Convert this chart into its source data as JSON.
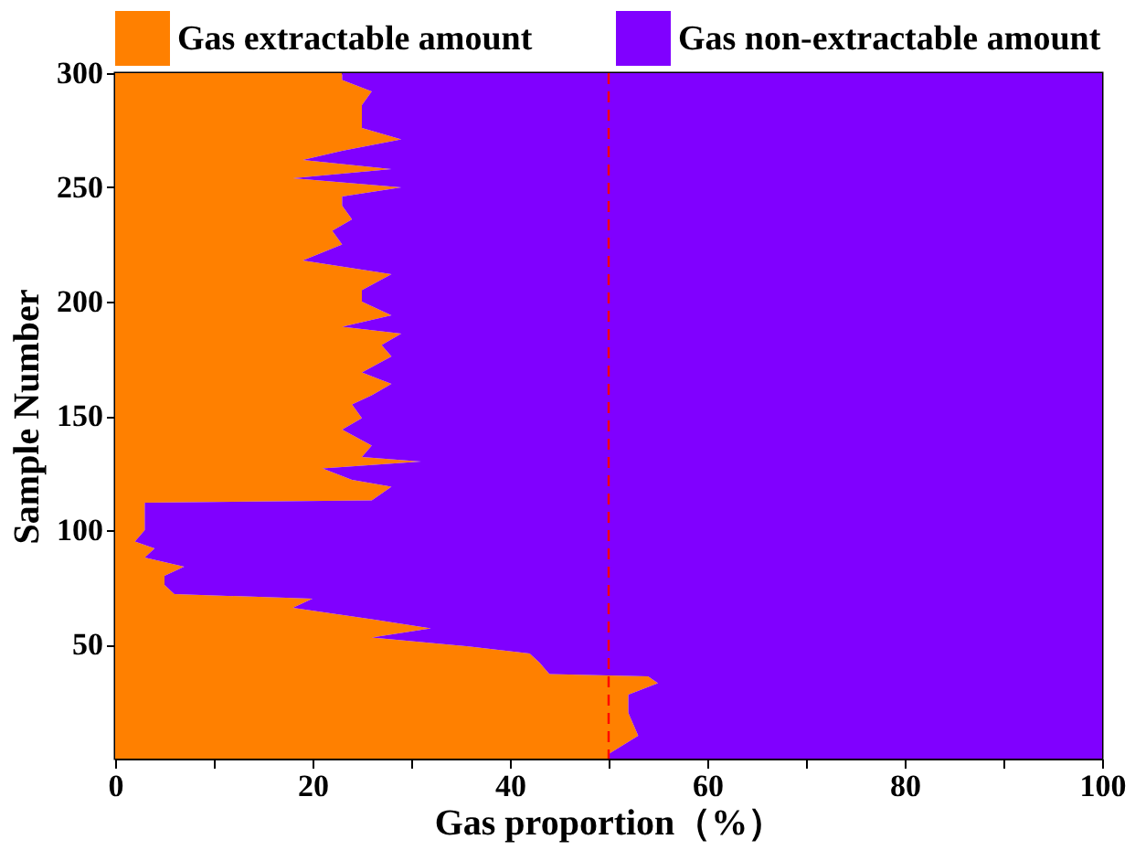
{
  "chart_data": {
    "type": "area",
    "orientation": "horizontal",
    "stacked": true,
    "xlabel": "Gas proportion（%）",
    "ylabel": "Sample Number",
    "x": [
      0,
      2,
      10,
      20,
      28,
      33,
      36,
      37,
      42,
      46,
      49,
      53,
      57,
      61,
      66,
      70,
      72,
      76,
      80,
      84,
      88,
      92,
      95,
      100,
      103,
      110,
      112,
      113,
      119,
      122,
      127,
      130,
      132,
      137,
      144,
      149,
      155,
      159,
      164,
      169,
      176,
      181,
      186,
      189,
      194,
      198,
      200,
      205,
      212,
      218,
      225,
      231,
      236,
      242,
      246,
      250,
      254,
      258,
      262,
      266,
      271,
      276,
      281,
      286,
      292,
      297,
      300
    ],
    "series": [
      {
        "name": "Gas extractable amount",
        "color": "#ff8000",
        "values": [
          50,
          50,
          53,
          52,
          52,
          55,
          54,
          44,
          43,
          42,
          36,
          26,
          32,
          26,
          18,
          20,
          6,
          5,
          5,
          7,
          3,
          4,
          2,
          3,
          3,
          3,
          3,
          26,
          28,
          24,
          21,
          31,
          25,
          26,
          23,
          25,
          24,
          26,
          28,
          25,
          28,
          27,
          29,
          23,
          28,
          26,
          25,
          25,
          28,
          19,
          23,
          22,
          24,
          23,
          23,
          29,
          18,
          28,
          19,
          23,
          29,
          25,
          25,
          25,
          26,
          23,
          23
        ]
      },
      {
        "name": "Gas non-extractable amount",
        "color": "#8000ff",
        "values": [
          50,
          50,
          47,
          48,
          48,
          45,
          46,
          56,
          57,
          58,
          64,
          74,
          68,
          74,
          82,
          80,
          94,
          95,
          95,
          93,
          97,
          96,
          98,
          97,
          97,
          97,
          97,
          74,
          72,
          76,
          79,
          69,
          75,
          74,
          77,
          75,
          76,
          74,
          72,
          75,
          72,
          73,
          71,
          77,
          72,
          74,
          75,
          75,
          72,
          81,
          77,
          78,
          76,
          77,
          77,
          71,
          82,
          72,
          81,
          77,
          71,
          75,
          75,
          75,
          74,
          77,
          77
        ]
      }
    ],
    "xlim": [
      0,
      100
    ],
    "xticks": [
      0,
      {
        "value": 10,
        "label": null
      },
      20,
      {
        "value": 30,
        "label": null
      },
      40,
      {
        "value": 50,
        "label": null
      },
      60,
      {
        "value": 70,
        "label": null
      },
      80,
      {
        "value": 90,
        "label": null
      },
      100
    ],
    "ylim": [
      0,
      300
    ],
    "yticks": [
      50,
      100,
      150,
      200,
      250,
      300
    ],
    "ref_lines": [
      {
        "axis": "x",
        "value": 50,
        "color": "#ff0000",
        "line_style": "dashed"
      }
    ],
    "legend": "top",
    "grid": false
  }
}
